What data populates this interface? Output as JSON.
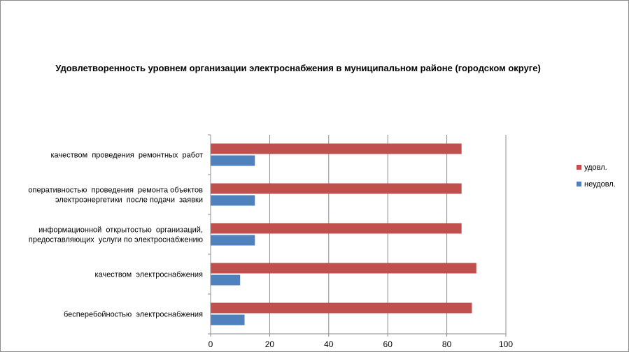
{
  "chart_data": {
    "type": "bar",
    "orientation": "horizontal",
    "title": "Удовлетворенность уровнем организации электроснабжения в муниципальном районе (городском округе)",
    "categories": [
      [
        "качеством  проведения  ремонтных  работ"
      ],
      [
        "оперативностью  проведения  ремонта объектов",
        "электроэнергетики  после подачи  заявки"
      ],
      [
        "информационной  открытостью  организаций,",
        "предоставляющих  услуги по электроснабжению"
      ],
      [
        "качеством  электроснабжения"
      ],
      [
        "бесперебойностью  электроснабжения"
      ]
    ],
    "series": [
      {
        "name": "удовл.",
        "color": "#c0504d",
        "values": [
          85,
          85,
          85,
          90,
          88.5
        ]
      },
      {
        "name": "неудовл.",
        "color": "#4f81bd",
        "values": [
          15,
          15,
          15,
          10,
          11.5
        ]
      }
    ],
    "xlim": [
      0,
      100
    ],
    "xticks": [
      0,
      20,
      40,
      60,
      80,
      100
    ],
    "grid": true,
    "legend_position": "right"
  }
}
